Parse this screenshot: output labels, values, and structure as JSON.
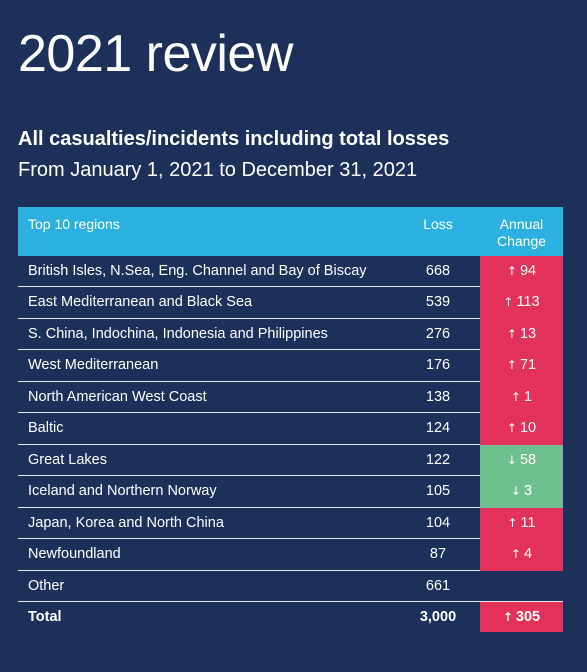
{
  "title": "2021 review",
  "subtitle": "All casualties/incidents including total losses",
  "date_range": "From January 1, 2021 to December 31, 2021",
  "table": {
    "headers": {
      "region": "Top 10 regions",
      "loss": "Loss",
      "change_line1": "Annual",
      "change_line2": "Change"
    },
    "rows": [
      {
        "region": "British Isles, N.Sea, Eng. Channel and Bay of Biscay",
        "loss": "668",
        "change": "94",
        "direction": "up"
      },
      {
        "region": "East Mediterranean and Black Sea",
        "loss": "539",
        "change": "113",
        "direction": "up"
      },
      {
        "region": "S. China, Indochina, Indonesia and Philippines",
        "loss": "276",
        "change": "13",
        "direction": "up"
      },
      {
        "region": "West Mediterranean",
        "loss": "176",
        "change": "71",
        "direction": "up"
      },
      {
        "region": "North American West Coast",
        "loss": "138",
        "change": "1",
        "direction": "up"
      },
      {
        "region": "Baltic",
        "loss": "124",
        "change": "10",
        "direction": "up"
      },
      {
        "region": "Great Lakes",
        "loss": "122",
        "change": "58",
        "direction": "down"
      },
      {
        "region": "Iceland and Northern Norway",
        "loss": "105",
        "change": "3",
        "direction": "down"
      },
      {
        "region": "Japan, Korea and North China",
        "loss": "104",
        "change": "11",
        "direction": "up"
      },
      {
        "region": "Newfoundland",
        "loss": "87",
        "change": "4",
        "direction": "up"
      }
    ],
    "other": {
      "region": "Other",
      "loss": "661"
    },
    "total": {
      "region": "Total",
      "loss": "3,000",
      "change": "305",
      "direction": "up"
    }
  },
  "colors": {
    "background": "#1c3059",
    "header": "#2bb0e0",
    "increase": "#e3325a",
    "decrease": "#6ec18f"
  },
  "icons": {
    "up": "arrow-up-icon",
    "down": "arrow-down-icon"
  }
}
